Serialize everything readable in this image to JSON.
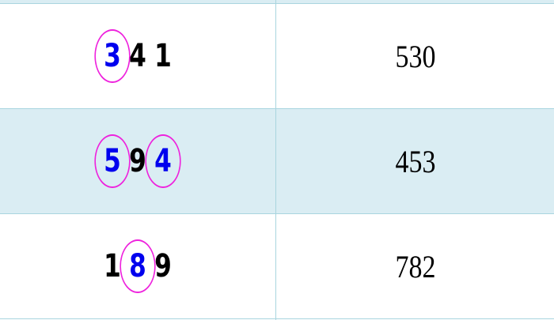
{
  "rows": [
    {
      "digits": [
        {
          "v": "3",
          "circled": true
        },
        {
          "v": "4",
          "circled": false
        },
        {
          "v": "1",
          "circled": false
        }
      ],
      "value": "530"
    },
    {
      "digits": [
        {
          "v": "5",
          "circled": true
        },
        {
          "v": "9",
          "circled": false
        },
        {
          "v": "4",
          "circled": true
        }
      ],
      "value": "453"
    },
    {
      "digits": [
        {
          "v": "1",
          "circled": false
        },
        {
          "v": "8",
          "circled": true
        },
        {
          "v": "9",
          "circled": false
        }
      ],
      "value": "782"
    }
  ],
  "colors": {
    "circled_digit": "#0000ee",
    "circle": "#ee22dd",
    "row_alt": "#daedf3",
    "border": "#a9d5df"
  }
}
